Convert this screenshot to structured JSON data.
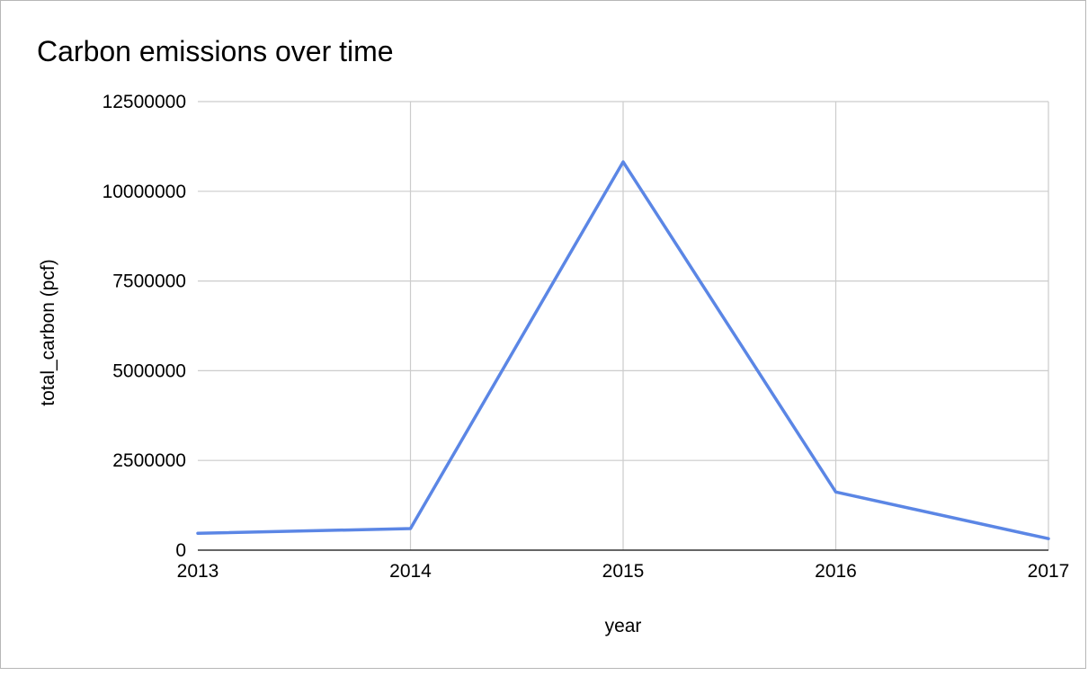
{
  "chart_data": {
    "type": "line",
    "title": "Carbon emissions over time",
    "xlabel": "year",
    "ylabel": "total_carbon (pcf)",
    "x": [
      "2013",
      "2014",
      "2015",
      "2016",
      "2017"
    ],
    "series": [
      {
        "values": [
          470000,
          600000,
          10820000,
          1620000,
          320000
        ],
        "color": "#5b86e5"
      }
    ],
    "ylim": [
      0,
      12500000
    ],
    "yticks": [
      "0",
      "2500000",
      "5000000",
      "7500000",
      "10000000",
      "12500000"
    ],
    "grid": true,
    "legend": "none"
  }
}
